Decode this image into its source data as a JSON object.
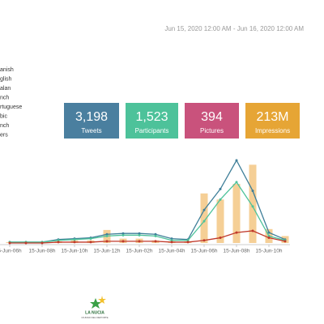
{
  "date_range": "Jun 15, 2020 12:00 AM - Jun 16, 2020 12:00 AM",
  "languages": [
    "anish",
    "glish",
    "alan",
    "nch",
    "rtuguese",
    "bic",
    "nch",
    "ers"
  ],
  "stats": [
    {
      "value": "3,198",
      "label": "Tweets",
      "color": "#4a7f9f"
    },
    {
      "value": "1,523",
      "label": "Participants",
      "color": "#4dc29a"
    },
    {
      "value": "394",
      "label": "Pictures",
      "color": "#c9527c"
    },
    {
      "value": "213M",
      "label": "Impressions",
      "color": "#e6a535"
    }
  ],
  "chart_data": {
    "type": "line",
    "categories": [
      "5-Jun-06h",
      null,
      "15-Jun-08h",
      null,
      "15-Jun-10h",
      null,
      "15-Jun-12h",
      null,
      "15-Jun-02h",
      null,
      "15-Jun-04h",
      null,
      "15-Jun-06h",
      null,
      "15-Jun-08h",
      null,
      "15-Jun-10h",
      null
    ],
    "bars": {
      "color": "#f5cf96",
      "values": [
        1,
        1,
        1,
        2,
        3,
        3,
        15,
        5,
        5,
        3,
        2,
        2,
        57,
        50,
        68,
        90,
        16,
        8
      ]
    },
    "series": [
      {
        "color": "#3f7f99",
        "values": [
          1,
          1,
          1,
          4,
          5,
          6,
          10,
          11,
          11,
          10,
          5,
          4,
          38,
          62,
          95,
          60,
          12,
          4
        ]
      },
      {
        "color": "#4dc29a",
        "values": [
          1,
          1,
          1,
          3,
          4,
          5,
          8,
          9,
          9,
          8,
          3,
          3,
          25,
          50,
          70,
          42,
          8,
          3
        ]
      },
      {
        "color": "#c0392b",
        "values": [
          0,
          0,
          0,
          1,
          1,
          1,
          2,
          2,
          2,
          2,
          1,
          1,
          3,
          6,
          12,
          14,
          6,
          2
        ]
      }
    ]
  },
  "logo": {
    "name": "LA NUCIA",
    "tagline": "CIUDAD DEL DEPORTE"
  }
}
